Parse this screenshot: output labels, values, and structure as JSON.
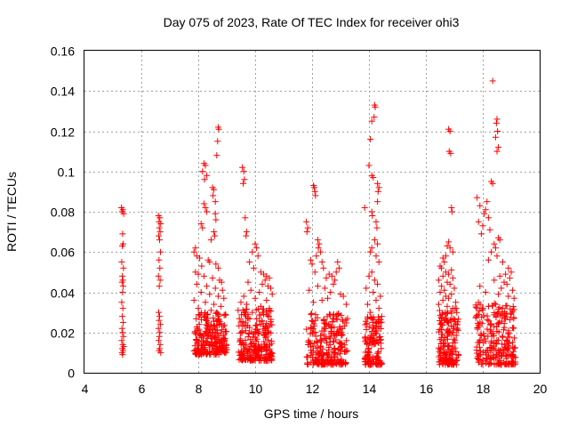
{
  "chart_data": {
    "type": "scatter",
    "title": "Day 075 of 2023, Rate Of TEC Index for receiver ohi3",
    "xlabel": "GPS time / hours",
    "ylabel": "ROTI / TECUs",
    "xlim": [
      4,
      20
    ],
    "ylim": [
      0,
      0.16
    ],
    "xticks": [
      4,
      6,
      8,
      10,
      12,
      14,
      16,
      18,
      20
    ],
    "xtick_labels": [
      "4",
      "6",
      "8",
      "10",
      "12",
      "14",
      "16",
      "18",
      "20"
    ],
    "yticks": [
      0,
      0.02,
      0.04,
      0.06,
      0.08,
      0.1,
      0.12,
      0.14,
      0.16
    ],
    "ytick_labels": [
      "0",
      "0.02",
      "0.04",
      "0.06",
      "0.08",
      "0.1",
      "0.12",
      "0.14",
      "0.16"
    ],
    "grid": true,
    "marker": "+",
    "color": "#ff0000",
    "series": [
      {
        "name": "ohi3",
        "points": [
          [
            5.3,
            0.082
          ],
          [
            5.35,
            0.081
          ],
          [
            5.32,
            0.08
          ],
          [
            5.38,
            0.079
          ],
          [
            5.34,
            0.069
          ],
          [
            5.36,
            0.064
          ],
          [
            5.33,
            0.063
          ],
          [
            5.31,
            0.055
          ],
          [
            5.37,
            0.052
          ],
          [
            5.33,
            0.048
          ],
          [
            5.35,
            0.046
          ],
          [
            5.32,
            0.045
          ],
          [
            5.36,
            0.043
          ],
          [
            5.34,
            0.04
          ],
          [
            5.31,
            0.035
          ],
          [
            5.35,
            0.032
          ],
          [
            5.33,
            0.028
          ],
          [
            5.36,
            0.025
          ],
          [
            5.32,
            0.022
          ],
          [
            5.34,
            0.02
          ],
          [
            5.37,
            0.018
          ],
          [
            5.31,
            0.016
          ],
          [
            5.35,
            0.014
          ],
          [
            5.33,
            0.012
          ],
          [
            5.36,
            0.011
          ],
          [
            5.32,
            0.01
          ],
          [
            5.34,
            0.009
          ],
          [
            5.38,
            0.013
          ],
          [
            6.6,
            0.078
          ],
          [
            6.65,
            0.077
          ],
          [
            6.62,
            0.075
          ],
          [
            6.68,
            0.074
          ],
          [
            6.63,
            0.072
          ],
          [
            6.66,
            0.07
          ],
          [
            6.61,
            0.068
          ],
          [
            6.64,
            0.066
          ],
          [
            6.67,
            0.06
          ],
          [
            6.62,
            0.056
          ],
          [
            6.65,
            0.052
          ],
          [
            6.6,
            0.048
          ],
          [
            6.66,
            0.046
          ],
          [
            6.63,
            0.043
          ],
          [
            6.61,
            0.03
          ],
          [
            6.64,
            0.028
          ],
          [
            6.62,
            0.026
          ],
          [
            6.67,
            0.024
          ],
          [
            6.6,
            0.022
          ],
          [
            6.65,
            0.02
          ],
          [
            6.63,
            0.018
          ],
          [
            6.61,
            0.016
          ],
          [
            6.66,
            0.014
          ],
          [
            6.64,
            0.012
          ],
          [
            6.62,
            0.011
          ],
          [
            6.68,
            0.01
          ],
          [
            8.2,
            0.104
          ],
          [
            8.25,
            0.103
          ],
          [
            8.15,
            0.1
          ],
          [
            8.3,
            0.098
          ],
          [
            8.22,
            0.096
          ],
          [
            8.5,
            0.092
          ],
          [
            8.55,
            0.091
          ],
          [
            8.52,
            0.088
          ],
          [
            8.7,
            0.122
          ],
          [
            8.72,
            0.121
          ],
          [
            8.68,
            0.115
          ],
          [
            8.65,
            0.108
          ],
          [
            8.6,
            0.085
          ],
          [
            8.2,
            0.084
          ],
          [
            8.25,
            0.082
          ],
          [
            8.3,
            0.08
          ],
          [
            8.6,
            0.079
          ],
          [
            8.62,
            0.076
          ],
          [
            8.1,
            0.074
          ],
          [
            8.15,
            0.072
          ],
          [
            8.55,
            0.07
          ],
          [
            8.58,
            0.068
          ],
          [
            8.45,
            0.066
          ],
          [
            7.9,
            0.062
          ],
          [
            7.85,
            0.06
          ],
          [
            7.95,
            0.058
          ],
          [
            8.05,
            0.057
          ],
          [
            8.35,
            0.056
          ],
          [
            8.4,
            0.055
          ],
          [
            8.62,
            0.054
          ],
          [
            8.12,
            0.053
          ],
          [
            8.7,
            0.052
          ],
          [
            7.9,
            0.05
          ],
          [
            8.0,
            0.049
          ],
          [
            8.2,
            0.048
          ],
          [
            8.5,
            0.047
          ],
          [
            8.75,
            0.046
          ],
          [
            8.82,
            0.045
          ],
          [
            7.95,
            0.044
          ],
          [
            8.3,
            0.043
          ],
          [
            8.6,
            0.042
          ],
          [
            8.85,
            0.041
          ],
          [
            8.1,
            0.04
          ],
          [
            8.4,
            0.039
          ],
          [
            8.7,
            0.038
          ],
          [
            8.9,
            0.037
          ],
          [
            7.85,
            0.036
          ],
          [
            8.25,
            0.035
          ],
          [
            8.55,
            0.034
          ],
          [
            8.8,
            0.033
          ],
          [
            8.0,
            0.032
          ],
          [
            8.45,
            0.031
          ],
          [
            8.65,
            0.03
          ],
          [
            8.95,
            0.029
          ],
          [
            9.55,
            0.102
          ],
          [
            9.6,
            0.1
          ],
          [
            9.62,
            0.096
          ],
          [
            9.58,
            0.094
          ],
          [
            9.65,
            0.077
          ],
          [
            9.7,
            0.07
          ],
          [
            9.68,
            0.068
          ],
          [
            10.0,
            0.064
          ],
          [
            10.05,
            0.062
          ],
          [
            9.9,
            0.06
          ],
          [
            10.1,
            0.058
          ],
          [
            9.8,
            0.055
          ],
          [
            9.95,
            0.052
          ],
          [
            10.2,
            0.05
          ],
          [
            10.3,
            0.049
          ],
          [
            10.4,
            0.048
          ],
          [
            10.5,
            0.047
          ],
          [
            10.35,
            0.046
          ],
          [
            9.75,
            0.045
          ],
          [
            10.25,
            0.044
          ],
          [
            10.45,
            0.043
          ],
          [
            10.55,
            0.042
          ],
          [
            9.85,
            0.041
          ],
          [
            10.15,
            0.04
          ],
          [
            10.6,
            0.039
          ],
          [
            9.6,
            0.038
          ],
          [
            10.0,
            0.037
          ],
          [
            10.4,
            0.036
          ],
          [
            9.5,
            0.035
          ],
          [
            9.7,
            0.034
          ],
          [
            10.2,
            0.033
          ],
          [
            10.5,
            0.032
          ],
          [
            9.4,
            0.031
          ],
          [
            9.9,
            0.03
          ],
          [
            10.3,
            0.029
          ],
          [
            11.8,
            0.075
          ],
          [
            11.85,
            0.072
          ],
          [
            11.82,
            0.07
          ],
          [
            12.05,
            0.093
          ],
          [
            12.08,
            0.092
          ],
          [
            12.1,
            0.09
          ],
          [
            12.12,
            0.088
          ],
          [
            12.2,
            0.066
          ],
          [
            12.25,
            0.064
          ],
          [
            12.22,
            0.062
          ],
          [
            12.3,
            0.06
          ],
          [
            12.15,
            0.058
          ],
          [
            11.95,
            0.056
          ],
          [
            12.35,
            0.055
          ],
          [
            12.0,
            0.054
          ],
          [
            12.4,
            0.052
          ],
          [
            12.1,
            0.05
          ],
          [
            12.6,
            0.049
          ],
          [
            12.7,
            0.048
          ],
          [
            12.5,
            0.047
          ],
          [
            12.8,
            0.046
          ],
          [
            12.9,
            0.055
          ],
          [
            12.95,
            0.052
          ],
          [
            12.85,
            0.05
          ],
          [
            12.75,
            0.044
          ],
          [
            12.2,
            0.043
          ],
          [
            12.45,
            0.042
          ],
          [
            11.9,
            0.041
          ],
          [
            12.65,
            0.04
          ],
          [
            13.0,
            0.039
          ],
          [
            13.1,
            0.038
          ],
          [
            12.55,
            0.037
          ],
          [
            12.35,
            0.036
          ],
          [
            12.05,
            0.035
          ],
          [
            13.2,
            0.034
          ],
          [
            14.2,
            0.133
          ],
          [
            14.22,
            0.132
          ],
          [
            14.18,
            0.127
          ],
          [
            14.1,
            0.125
          ],
          [
            14.05,
            0.116
          ],
          [
            14.0,
            0.103
          ],
          [
            14.1,
            0.098
          ],
          [
            14.15,
            0.097
          ],
          [
            14.3,
            0.094
          ],
          [
            14.35,
            0.092
          ],
          [
            14.32,
            0.09
          ],
          [
            14.3,
            0.085
          ],
          [
            13.85,
            0.082
          ],
          [
            14.1,
            0.08
          ],
          [
            14.12,
            0.078
          ],
          [
            14.25,
            0.075
          ],
          [
            14.28,
            0.072
          ],
          [
            14.2,
            0.066
          ],
          [
            14.3,
            0.064
          ],
          [
            14.1,
            0.062
          ],
          [
            14.05,
            0.06
          ],
          [
            14.25,
            0.058
          ],
          [
            14.35,
            0.055
          ],
          [
            14.1,
            0.05
          ],
          [
            14.0,
            0.048
          ],
          [
            14.2,
            0.046
          ],
          [
            14.3,
            0.044
          ],
          [
            13.9,
            0.042
          ],
          [
            14.15,
            0.04
          ],
          [
            14.4,
            0.038
          ],
          [
            14.25,
            0.036
          ],
          [
            13.95,
            0.034
          ],
          [
            14.35,
            0.032
          ],
          [
            14.05,
            0.03
          ],
          [
            14.45,
            0.028
          ],
          [
            16.8,
            0.121
          ],
          [
            16.85,
            0.12
          ],
          [
            16.82,
            0.11
          ],
          [
            16.87,
            0.109
          ],
          [
            16.9,
            0.082
          ],
          [
            16.92,
            0.08
          ],
          [
            16.8,
            0.065
          ],
          [
            16.75,
            0.063
          ],
          [
            16.85,
            0.062
          ],
          [
            16.95,
            0.06
          ],
          [
            16.7,
            0.058
          ],
          [
            16.6,
            0.057
          ],
          [
            16.65,
            0.055
          ],
          [
            16.5,
            0.053
          ],
          [
            16.55,
            0.052
          ],
          [
            16.9,
            0.051
          ],
          [
            16.7,
            0.05
          ],
          [
            16.8,
            0.049
          ],
          [
            16.6,
            0.048
          ],
          [
            16.95,
            0.047
          ],
          [
            16.45,
            0.046
          ],
          [
            16.75,
            0.045
          ],
          [
            16.85,
            0.044
          ],
          [
            16.55,
            0.043
          ],
          [
            17.0,
            0.042
          ],
          [
            16.65,
            0.041
          ],
          [
            16.5,
            0.04
          ],
          [
            16.9,
            0.039
          ],
          [
            16.7,
            0.038
          ],
          [
            16.8,
            0.037
          ],
          [
            16.6,
            0.036
          ],
          [
            17.05,
            0.035
          ],
          [
            16.45,
            0.034
          ],
          [
            16.75,
            0.033
          ],
          [
            16.95,
            0.032
          ],
          [
            18.35,
            0.145
          ],
          [
            18.5,
            0.126
          ],
          [
            18.48,
            0.124
          ],
          [
            18.52,
            0.12
          ],
          [
            18.45,
            0.117
          ],
          [
            18.55,
            0.112
          ],
          [
            18.5,
            0.11
          ],
          [
            18.3,
            0.095
          ],
          [
            18.35,
            0.094
          ],
          [
            17.8,
            0.087
          ],
          [
            18.15,
            0.085
          ],
          [
            17.9,
            0.083
          ],
          [
            18.1,
            0.081
          ],
          [
            18.05,
            0.079
          ],
          [
            18.2,
            0.077
          ],
          [
            17.85,
            0.075
          ],
          [
            18.0,
            0.073
          ],
          [
            18.25,
            0.071
          ],
          [
            17.95,
            0.069
          ],
          [
            18.55,
            0.067
          ],
          [
            18.6,
            0.066
          ],
          [
            18.4,
            0.064
          ],
          [
            18.45,
            0.062
          ],
          [
            18.3,
            0.06
          ],
          [
            18.5,
            0.058
          ],
          [
            18.2,
            0.056
          ],
          [
            18.7,
            0.055
          ],
          [
            18.9,
            0.052
          ],
          [
            19.0,
            0.05
          ],
          [
            18.8,
            0.049
          ],
          [
            18.6,
            0.048
          ],
          [
            18.95,
            0.047
          ],
          [
            18.4,
            0.046
          ],
          [
            18.75,
            0.045
          ],
          [
            18.85,
            0.044
          ],
          [
            17.9,
            0.043
          ],
          [
            18.65,
            0.042
          ],
          [
            19.05,
            0.041
          ],
          [
            18.1,
            0.04
          ],
          [
            18.55,
            0.039
          ],
          [
            18.9,
            0.038
          ],
          [
            19.1,
            0.037
          ]
        ]
      }
    ],
    "dense_clusters": [
      {
        "x_range": [
          7.85,
          9.0
        ],
        "y_range": [
          0.009,
          0.03
        ],
        "count": 220
      },
      {
        "x_range": [
          9.4,
          10.6
        ],
        "y_range": [
          0.006,
          0.032
        ],
        "count": 240
      },
      {
        "x_range": [
          11.8,
          13.25
        ],
        "y_range": [
          0.004,
          0.03
        ],
        "count": 240
      },
      {
        "x_range": [
          13.85,
          14.45
        ],
        "y_range": [
          0.004,
          0.028
        ],
        "count": 130
      },
      {
        "x_range": [
          16.45,
          17.15
        ],
        "y_range": [
          0.004,
          0.032
        ],
        "count": 160
      },
      {
        "x_range": [
          17.75,
          19.15
        ],
        "y_range": [
          0.004,
          0.035
        ],
        "count": 240
      }
    ]
  }
}
